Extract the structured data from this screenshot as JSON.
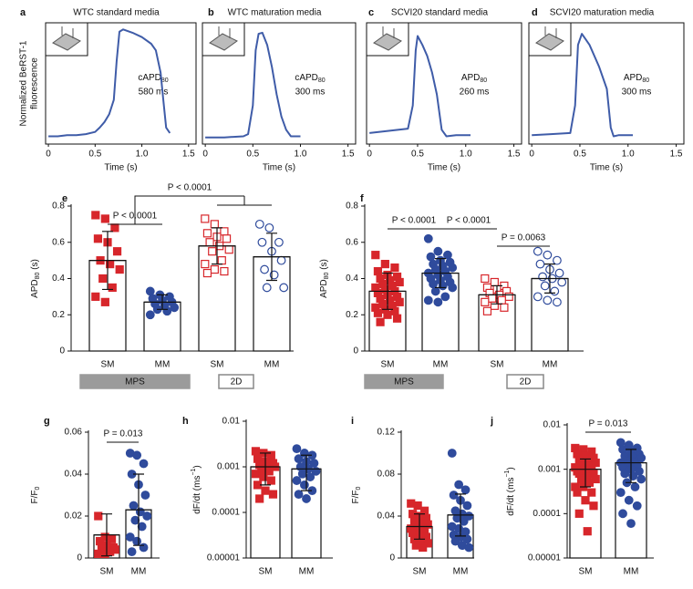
{
  "chart_data": [
    {
      "type": "line",
      "panel": "a",
      "title": "WTC standard media",
      "ylabel": [
        "Normalized BeRST-1",
        "fluorescence"
      ],
      "annotation": {
        "text": "cAPD",
        "sub": "80",
        "value": "580 ms"
      },
      "x": [
        0,
        0.1,
        0.2,
        0.3,
        0.4,
        0.5,
        0.55,
        0.6,
        0.65,
        0.7,
        0.73,
        0.76,
        0.8,
        0.9,
        1.0,
        1.1,
        1.15,
        1.2,
        1.23,
        1.26,
        1.3
      ],
      "series": [
        {
          "color": "#3f5ca8",
          "values": [
            0.02,
            0.02,
            0.03,
            0.03,
            0.04,
            0.06,
            0.1,
            0.15,
            0.22,
            0.35,
            0.7,
            0.97,
            0.99,
            0.96,
            0.92,
            0.86,
            0.8,
            0.6,
            0.35,
            0.1,
            0.05
          ]
        }
      ],
      "xlabel": "Time (s)",
      "xlim": [
        -0.03,
        1.58
      ],
      "xticks": [
        0,
        0.5,
        {
          "value": 1,
          "label": "1.0"
        },
        1.5
      ],
      "ylim": [
        -0.05,
        1.05
      ]
    },
    {
      "type": "line",
      "panel": "b",
      "title": "WTC maturation media",
      "annotation": {
        "text": "cAPD",
        "sub": "80",
        "value": "300 ms"
      },
      "x": [
        0,
        0.2,
        0.4,
        0.45,
        0.5,
        0.53,
        0.56,
        0.6,
        0.65,
        0.7,
        0.75,
        0.8,
        0.85,
        0.9,
        1.0
      ],
      "series": [
        {
          "color": "#3f5ca8",
          "values": [
            0.01,
            0.01,
            0.02,
            0.04,
            0.3,
            0.8,
            0.95,
            0.96,
            0.85,
            0.65,
            0.4,
            0.2,
            0.08,
            0.02,
            0.02
          ]
        }
      ],
      "xlabel": "Time (s)",
      "xlim": [
        -0.03,
        1.58
      ],
      "xticks": [
        0,
        0.5,
        {
          "value": 1,
          "label": "1.0"
        },
        1.5
      ],
      "ylim": [
        -0.05,
        1.05
      ]
    },
    {
      "type": "line",
      "panel": "c",
      "title": "SCVI20 standard media",
      "annotation": {
        "text": "APD",
        "sub": "80",
        "value": "260 ms"
      },
      "x": [
        0,
        0.2,
        0.4,
        0.45,
        0.48,
        0.5,
        0.55,
        0.6,
        0.65,
        0.7,
        0.75,
        0.8,
        0.9,
        1.05
      ],
      "series": [
        {
          "color": "#3f5ca8",
          "values": [
            0.05,
            0.07,
            0.09,
            0.3,
            0.8,
            0.93,
            0.85,
            0.75,
            0.6,
            0.4,
            0.08,
            0.02,
            0.03,
            0.03
          ]
        }
      ],
      "xlabel": "Time (s)",
      "xlim": [
        -0.03,
        1.58
      ],
      "xticks": [
        0,
        0.5,
        {
          "value": 1,
          "label": "1.0"
        },
        1.5
      ],
      "ylim": [
        -0.05,
        1.05
      ]
    },
    {
      "type": "line",
      "panel": "d",
      "title": "SCVI20 maturation media",
      "annotation": {
        "text": "APD",
        "sub": "80",
        "value": "300 ms"
      },
      "x": [
        0,
        0.2,
        0.4,
        0.45,
        0.48,
        0.52,
        0.6,
        0.7,
        0.78,
        0.82,
        0.85,
        0.9,
        1.05
      ],
      "series": [
        {
          "color": "#3f5ca8",
          "values": [
            0.03,
            0.04,
            0.05,
            0.3,
            0.85,
            0.95,
            0.85,
            0.65,
            0.45,
            0.1,
            0.02,
            0.03,
            0.03
          ]
        }
      ],
      "xlabel": "Time (s)",
      "xlim": [
        -0.03,
        1.58
      ],
      "xticks": [
        0,
        0.5,
        {
          "value": 1,
          "label": "1.0"
        },
        1.5
      ],
      "ylim": [
        -0.05,
        1.05
      ]
    },
    {
      "type": "bar",
      "panel": "e",
      "ylabel": {
        "text": "APD",
        "sub": "80",
        "after": " (s)"
      },
      "categories": [
        "SM",
        "MM",
        "SM",
        "MM"
      ],
      "groups": [
        "MPS",
        "2D"
      ],
      "values": [
        0.5,
        0.27,
        0.58,
        0.52
      ],
      "errors": [
        0.16,
        0.04,
        0.1,
        0.13
      ],
      "colors": [
        "#d7262b",
        "#2f4b9c",
        "#d7262b",
        "#2f4b9c"
      ],
      "markers": [
        "square",
        "circle",
        "square",
        "circle"
      ],
      "filled": [
        true,
        true,
        false,
        false
      ],
      "points": [
        [
          0.75,
          0.73,
          0.68,
          0.62,
          0.6,
          0.55,
          0.5,
          0.48,
          0.45,
          0.4,
          0.35,
          0.3,
          0.27
        ],
        [
          0.33,
          0.31,
          0.3,
          0.29,
          0.28,
          0.27,
          0.26,
          0.25,
          0.24,
          0.23,
          0.22,
          0.2
        ],
        [
          0.73,
          0.7,
          0.66,
          0.65,
          0.63,
          0.62,
          0.6,
          0.58,
          0.56,
          0.55,
          0.5,
          0.48,
          0.45,
          0.44,
          0.43
        ],
        [
          0.7,
          0.68,
          0.6,
          0.6,
          0.55,
          0.5,
          0.45,
          0.42,
          0.35,
          0.35
        ]
      ],
      "significance": [
        "P < 0.0001",
        "P < 0.0001"
      ],
      "ylim": [
        0,
        0.8
      ],
      "yticks": [
        0,
        0.2,
        0.4,
        0.6,
        0.8
      ]
    },
    {
      "type": "bar",
      "panel": "f",
      "ylabel": {
        "text": "APD",
        "sub": "80",
        "after": " (s)"
      },
      "categories": [
        "SM",
        "MM",
        "SM",
        "MM"
      ],
      "groups": [
        "MPS",
        "2D"
      ],
      "values": [
        0.33,
        0.43,
        0.31,
        0.4
      ],
      "errors": [
        0.1,
        0.08,
        0.05,
        0.08
      ],
      "colors": [
        "#d7262b",
        "#2f4b9c",
        "#d7262b",
        "#2f4b9c"
      ],
      "markers": [
        "square",
        "circle",
        "square",
        "circle"
      ],
      "filled": [
        true,
        true,
        false,
        false
      ],
      "points": [
        [
          0.53,
          0.48,
          0.46,
          0.44,
          0.42,
          0.41,
          0.4,
          0.39,
          0.38,
          0.37,
          0.36,
          0.35,
          0.34,
          0.33,
          0.32,
          0.31,
          0.3,
          0.29,
          0.28,
          0.27,
          0.26,
          0.25,
          0.24,
          0.23,
          0.22,
          0.21,
          0.2,
          0.18,
          0.16
        ],
        [
          0.62,
          0.55,
          0.53,
          0.52,
          0.5,
          0.49,
          0.48,
          0.47,
          0.46,
          0.45,
          0.44,
          0.43,
          0.42,
          0.41,
          0.4,
          0.39,
          0.38,
          0.37,
          0.36,
          0.35,
          0.33,
          0.3,
          0.28,
          0.27
        ],
        [
          0.4,
          0.38,
          0.36,
          0.35,
          0.34,
          0.33,
          0.32,
          0.31,
          0.3,
          0.29,
          0.28,
          0.27,
          0.25,
          0.24,
          0.22
        ],
        [
          0.55,
          0.53,
          0.5,
          0.48,
          0.45,
          0.43,
          0.41,
          0.4,
          0.38,
          0.36,
          0.33,
          0.3,
          0.28,
          0.27
        ]
      ],
      "significance": [
        "P < 0.0001",
        "P < 0.0001",
        "P = 0.0063"
      ],
      "ylim": [
        0,
        0.8
      ],
      "yticks": [
        0,
        0.2,
        0.4,
        0.6,
        0.8
      ]
    },
    {
      "type": "bar",
      "panel": "g",
      "ylabel": {
        "text": "F/F",
        "sub": "0"
      },
      "categories": [
        "SM",
        "MM"
      ],
      "values": [
        0.011,
        0.023
      ],
      "errors": [
        0.01,
        0.017
      ],
      "colors": [
        "#d7262b",
        "#2f4b9c"
      ],
      "markers": [
        "square",
        "circle"
      ],
      "filled": [
        true,
        true
      ],
      "points": [
        [
          0.02,
          0.01,
          0.009,
          0.008,
          0.006,
          0.005,
          0.005,
          0.004,
          0.004,
          0.003,
          0.003,
          0.002,
          0.002
        ],
        [
          0.05,
          0.049,
          0.045,
          0.04,
          0.035,
          0.03,
          0.025,
          0.022,
          0.02,
          0.018,
          0.015,
          0.01,
          0.008,
          0.005,
          0.003
        ]
      ],
      "significance": [
        "P = 0.013"
      ],
      "ylim": [
        0,
        0.06
      ],
      "yticks": [
        0,
        0.02,
        0.04,
        0.06
      ]
    },
    {
      "type": "bar",
      "panel": "h",
      "ylabel": {
        "text": "dF/dt (ms",
        "sup": "−1",
        "after": ")"
      },
      "yscale": "log",
      "categories": [
        "SM",
        "MM"
      ],
      "values": [
        0.001,
        0.0009
      ],
      "error_low": [
        0.0004,
        0.0003
      ],
      "error_high": [
        0.002,
        0.0018
      ],
      "colors": [
        "#d7262b",
        "#2f4b9c"
      ],
      "markers": [
        "square",
        "circle"
      ],
      "filled": [
        true,
        true
      ],
      "points": [
        [
          0.0022,
          0.002,
          0.0018,
          0.0015,
          0.0013,
          0.0012,
          0.0011,
          0.001,
          0.001,
          0.0009,
          0.0008,
          0.0007,
          0.0006,
          0.0005,
          0.0004,
          0.0003,
          0.00025,
          0.0002
        ],
        [
          0.0025,
          0.002,
          0.0018,
          0.0015,
          0.0013,
          0.0012,
          0.001,
          0.0009,
          0.0008,
          0.0007,
          0.0006,
          0.0005,
          0.0004,
          0.0003,
          0.00025,
          0.0002
        ]
      ],
      "ylim": [
        1e-05,
        0.01
      ],
      "yticks": [
        1e-05,
        0.0001,
        0.001,
        0.01
      ]
    },
    {
      "type": "bar",
      "panel": "i",
      "ylabel": {
        "text": "F/F",
        "sub": "0"
      },
      "categories": [
        "SM",
        "MM"
      ],
      "values": [
        0.03,
        0.041
      ],
      "errors": [
        0.012,
        0.02
      ],
      "colors": [
        "#d7262b",
        "#2f4b9c"
      ],
      "markers": [
        "square",
        "circle"
      ],
      "filled": [
        true,
        true
      ],
      "points": [
        [
          0.052,
          0.05,
          0.045,
          0.042,
          0.04,
          0.038,
          0.035,
          0.033,
          0.032,
          0.03,
          0.029,
          0.028,
          0.027,
          0.025,
          0.024,
          0.022,
          0.02,
          0.018,
          0.016,
          0.014,
          0.012,
          0.01
        ],
        [
          0.1,
          0.07,
          0.065,
          0.06,
          0.055,
          0.05,
          0.045,
          0.042,
          0.04,
          0.038,
          0.035,
          0.03,
          0.028,
          0.025,
          0.022,
          0.02,
          0.018,
          0.016,
          0.012,
          0.01
        ]
      ],
      "ylim": [
        0,
        0.12
      ],
      "yticks": [
        0,
        0.04,
        0.08,
        0.12
      ]
    },
    {
      "type": "bar",
      "panel": "j",
      "ylabel": {
        "text": "dF/dt (ms",
        "sup": "−1",
        "after": ")"
      },
      "yscale": "log",
      "categories": [
        "SM",
        "MM"
      ],
      "values": [
        0.001,
        0.0014
      ],
      "error_low": [
        0.0004,
        0.0005
      ],
      "error_high": [
        0.0017,
        0.0028
      ],
      "colors": [
        "#d7262b",
        "#2f4b9c"
      ],
      "markers": [
        "square",
        "circle"
      ],
      "filled": [
        true,
        true
      ],
      "points": [
        [
          0.003,
          0.0028,
          0.0025,
          0.0022,
          0.002,
          0.0018,
          0.0016,
          0.0015,
          0.0014,
          0.0013,
          0.0012,
          0.0011,
          0.001,
          0.001,
          0.0009,
          0.0009,
          0.0008,
          0.0008,
          0.0007,
          0.0006,
          0.0006,
          0.0005,
          0.0004,
          0.0004,
          0.0003,
          0.0003,
          0.0002,
          0.00015,
          0.0001,
          4e-05
        ],
        [
          0.004,
          0.0035,
          0.003,
          0.0028,
          0.0025,
          0.0022,
          0.002,
          0.0019,
          0.0018,
          0.0016,
          0.0015,
          0.0014,
          0.0013,
          0.0012,
          0.0011,
          0.001,
          0.0009,
          0.0008,
          0.0007,
          0.0006,
          0.0005,
          0.0004,
          0.0003,
          0.0002,
          0.00015,
          0.0001,
          6e-05
        ]
      ],
      "significance": [
        "P = 0.013"
      ],
      "ylim": [
        1e-05,
        0.01
      ],
      "yticks": [
        1e-05,
        0.0001,
        0.001,
        0.01
      ]
    }
  ]
}
